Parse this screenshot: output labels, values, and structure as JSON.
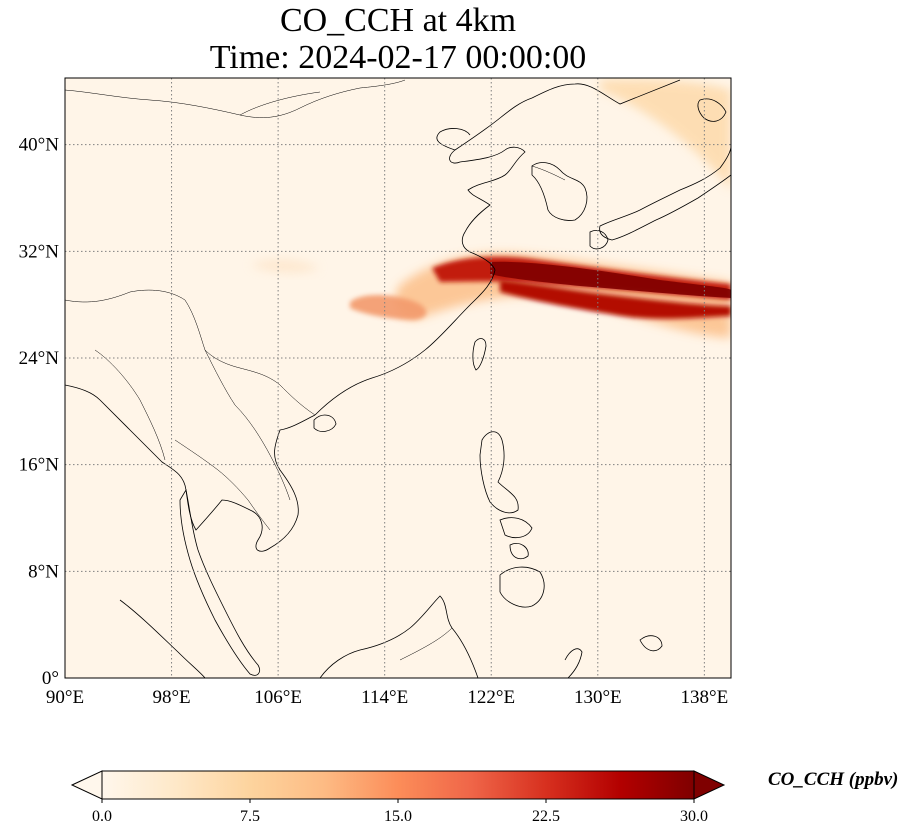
{
  "figure": {
    "title_line1": "CO_CCH at 4km",
    "title_line2": "Time: 2024-02-17 00:00:00"
  },
  "map": {
    "projection": "PlateCarree",
    "lon_range": [
      90,
      140
    ],
    "lat_range": [
      0,
      45
    ],
    "gridlines": "dotted gray",
    "coastlines": true,
    "borders": true,
    "x_ticks": [
      {
        "value": 90,
        "label": "90°E"
      },
      {
        "value": 98,
        "label": "98°E"
      },
      {
        "value": 106,
        "label": "106°E"
      },
      {
        "value": 114,
        "label": "114°E"
      },
      {
        "value": 122,
        "label": "122°E"
      },
      {
        "value": 130,
        "label": "130°E"
      },
      {
        "value": 138,
        "label": "138°E"
      }
    ],
    "y_ticks": [
      {
        "value": 0,
        "label": "0°"
      },
      {
        "value": 8,
        "label": "8°N"
      },
      {
        "value": 16,
        "label": "16°N"
      },
      {
        "value": 24,
        "label": "24°N"
      },
      {
        "value": 32,
        "label": "32°N"
      },
      {
        "value": 40,
        "label": "40°N"
      }
    ],
    "colormap": "OrRd",
    "background_color": "#fff5e8"
  },
  "colorbar": {
    "label": "CO_CCH (ppbv)",
    "range": [
      0,
      30
    ],
    "extend": "both",
    "ticks": [
      {
        "value": 0,
        "label": "0.0"
      },
      {
        "value": 7.5,
        "label": "7.5"
      },
      {
        "value": 15,
        "label": "15.0"
      },
      {
        "value": 22.5,
        "label": "22.5"
      },
      {
        "value": 30,
        "label": "30.0"
      }
    ],
    "colors": [
      "#fff7ec",
      "#fee8c8",
      "#fdd49e",
      "#fdbb84",
      "#fc8d59",
      "#ef6548",
      "#d7301f",
      "#b30000",
      "#7f0000"
    ]
  }
}
